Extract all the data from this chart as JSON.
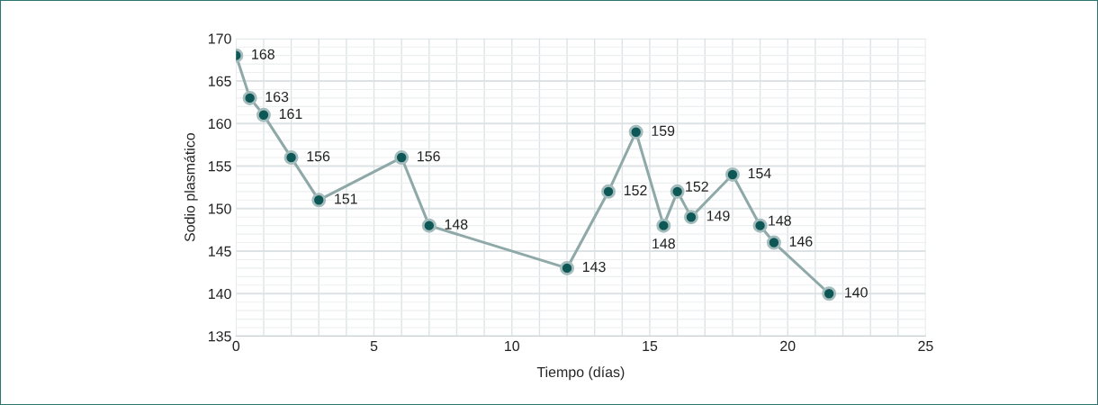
{
  "chart_data": {
    "type": "line",
    "xlabel": "Tiempo (días)",
    "ylabel": "Sodio plasmático",
    "x": [
      0,
      0.5,
      1,
      2,
      3,
      6,
      7,
      12,
      13.5,
      14.5,
      15.5,
      16,
      16.5,
      18,
      19,
      19.5,
      21.5
    ],
    "series": [
      {
        "color": "#0d5757",
        "values": [
          168,
          163,
          161,
          156,
          151,
          156,
          148,
          143,
          152,
          159,
          148,
          152,
          149,
          154,
          148,
          146,
          140
        ]
      }
    ],
    "xlim": [
      0,
      25
    ],
    "xticks": [
      0,
      5,
      10,
      15,
      20,
      25
    ],
    "ylim": [
      135,
      170
    ],
    "yticks": [
      135,
      140,
      145,
      150,
      155,
      160,
      165,
      170
    ],
    "grid": true,
    "marker": "circle",
    "line_style": "solid",
    "data_labels": true
  }
}
